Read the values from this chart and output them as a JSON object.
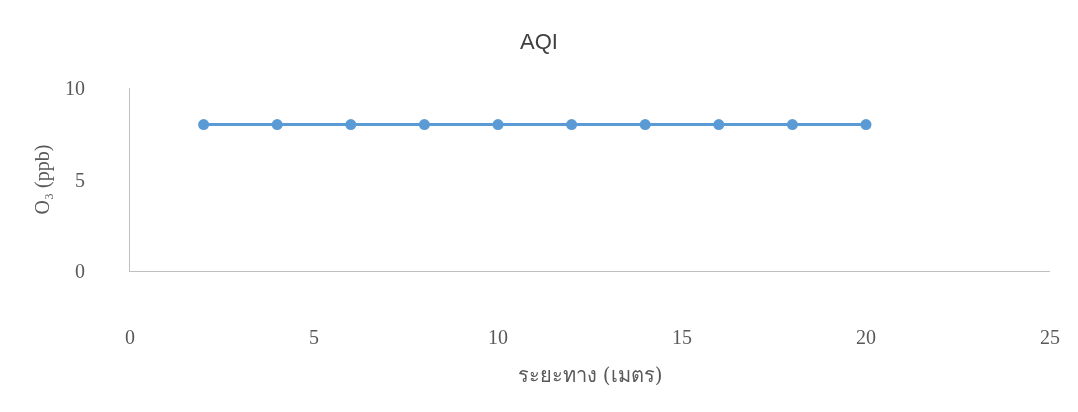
{
  "chart_data": {
    "type": "line",
    "title": "AQI",
    "xlabel": "ระยะทาง (เมตร)",
    "ylabel": "O₃ (ppb)",
    "x": [
      2,
      4,
      6,
      8,
      10,
      12,
      14,
      16,
      18,
      20
    ],
    "series": [
      {
        "color": "#5b9bd5",
        "values": [
          8,
          8,
          8,
          8,
          8,
          8,
          8,
          8,
          8,
          8
        ]
      }
    ],
    "xlim": [
      0,
      25
    ],
    "xticks": [
      0,
      5,
      10,
      15,
      20,
      25
    ],
    "ylim": [
      0,
      10
    ],
    "yticks": [
      0,
      5,
      10
    ],
    "marker": "circle",
    "line_style": "solid"
  }
}
